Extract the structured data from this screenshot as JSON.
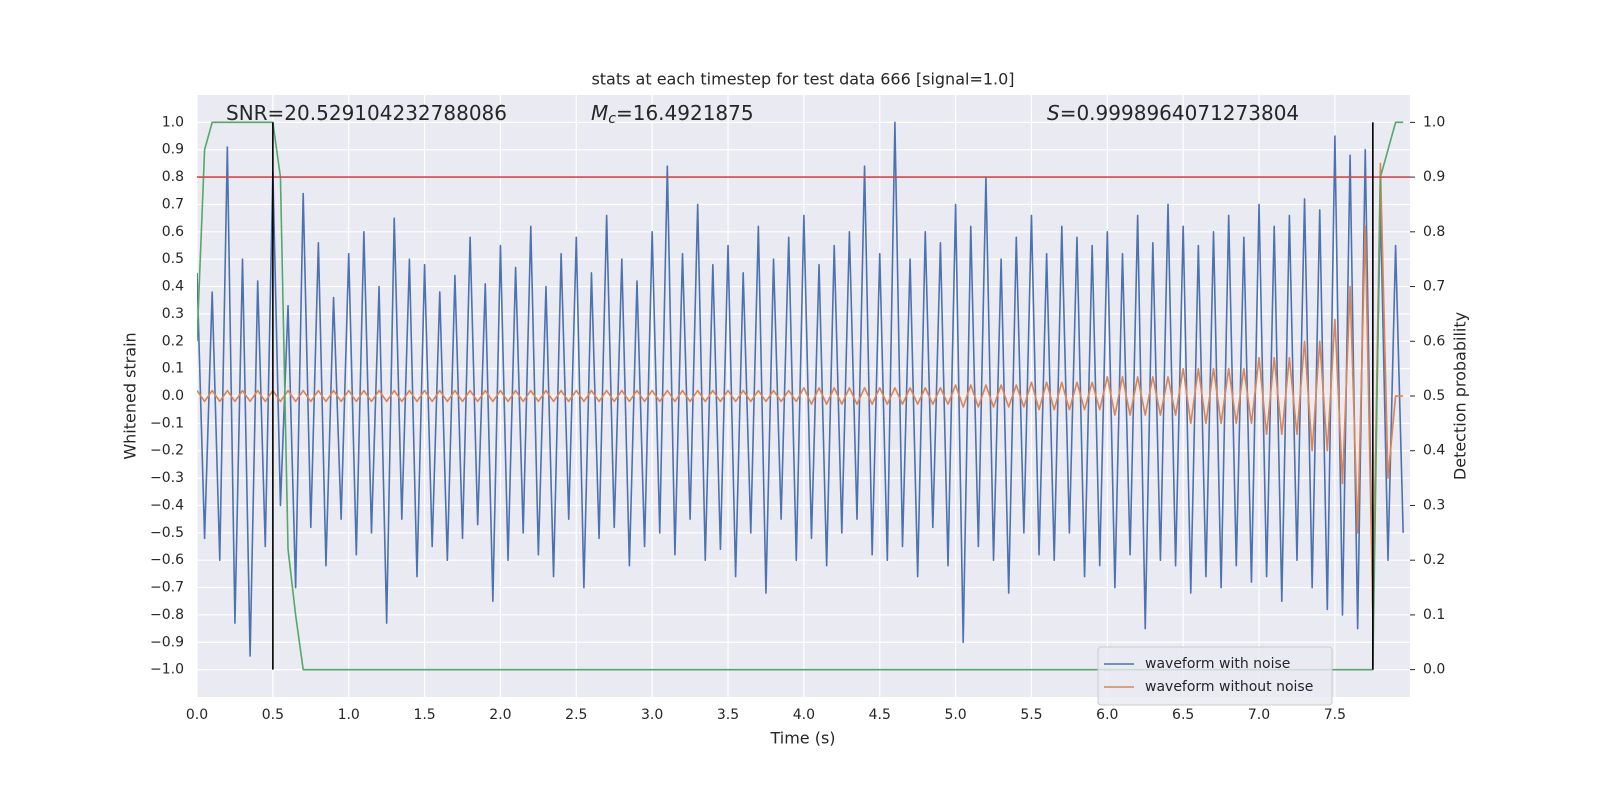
{
  "chart_data": {
    "type": "line",
    "title": "stats at each timestep for test data 666 [signal=1.0]",
    "xlabel": "Time (s)",
    "ylabel": "Whitened strain",
    "y2label": "Detection probability",
    "annotations": [
      {
        "text": "SNR=20.529104232788086"
      },
      {
        "symbol": "M",
        "subscript": "c",
        "text": "=16.4921875"
      },
      {
        "symbol": "S",
        "text": "=0.9998964071273804"
      }
    ],
    "xlim": [
      0,
      7.995
    ],
    "ylim": [
      -1.1,
      1.1
    ],
    "y2lim": [
      -0.05,
      1.05
    ],
    "grid": true,
    "legend": "lower right",
    "xticks": [
      {
        "value": 0,
        "label": "0.0"
      },
      {
        "value": 0.5,
        "label": "0.5"
      },
      {
        "value": 1,
        "label": "1.0"
      },
      {
        "value": 1.5,
        "label": "1.5"
      },
      {
        "value": 2,
        "label": "2.0"
      },
      {
        "value": 2.5,
        "label": "2.5"
      },
      {
        "value": 3,
        "label": "3.0"
      },
      {
        "value": 3.5,
        "label": "3.5"
      },
      {
        "value": 4,
        "label": "4.0"
      },
      {
        "value": 4.5,
        "label": "4.5"
      },
      {
        "value": 5,
        "label": "5.0"
      },
      {
        "value": 5.5,
        "label": "5.5"
      },
      {
        "value": 6,
        "label": "6.0"
      },
      {
        "value": 6.5,
        "label": "6.5"
      },
      {
        "value": 7,
        "label": "7.0"
      },
      {
        "value": 7.5,
        "label": "7.5"
      }
    ],
    "yticks": [
      {
        "value": -1,
        "label": "−1.0"
      },
      {
        "value": -0.9,
        "label": "−0.9"
      },
      {
        "value": -0.8,
        "label": "−0.8"
      },
      {
        "value": -0.7,
        "label": "−0.7"
      },
      {
        "value": -0.6,
        "label": "−0.6"
      },
      {
        "value": -0.5,
        "label": "−0.5"
      },
      {
        "value": -0.4,
        "label": "−0.4"
      },
      {
        "value": -0.3,
        "label": "−0.3"
      },
      {
        "value": -0.2,
        "label": "−0.2"
      },
      {
        "value": -0.1,
        "label": "−0.1"
      },
      {
        "value": 0,
        "label": "0.0"
      },
      {
        "value": 0.1,
        "label": "0.1"
      },
      {
        "value": 0.2,
        "label": "0.2"
      },
      {
        "value": 0.3,
        "label": "0.3"
      },
      {
        "value": 0.4,
        "label": "0.4"
      },
      {
        "value": 0.5,
        "label": "0.5"
      },
      {
        "value": 0.6,
        "label": "0.6"
      },
      {
        "value": 0.7,
        "label": "0.7"
      },
      {
        "value": 0.8,
        "label": "0.8"
      },
      {
        "value": 0.9,
        "label": "0.9"
      },
      {
        "value": 1,
        "label": "1.0"
      }
    ],
    "y2ticks": [
      {
        "value": 0,
        "label": "0.0"
      },
      {
        "value": 0.1,
        "label": "0.1"
      },
      {
        "value": 0.2,
        "label": "0.2"
      },
      {
        "value": 0.3,
        "label": "0.3"
      },
      {
        "value": 0.4,
        "label": "0.4"
      },
      {
        "value": 0.5,
        "label": "0.5"
      },
      {
        "value": 0.6,
        "label": "0.6"
      },
      {
        "value": 0.7,
        "label": "0.7"
      },
      {
        "value": 0.8,
        "label": "0.8"
      },
      {
        "value": 0.9,
        "label": "0.9"
      },
      {
        "value": 1,
        "label": "1.0"
      }
    ],
    "x": [
      0,
      0.05,
      0.1,
      0.15,
      0.2,
      0.25,
      0.3,
      0.35,
      0.4,
      0.45,
      0.5,
      0.55,
      0.6,
      0.65,
      0.7,
      0.75,
      0.8,
      0.85,
      0.9,
      0.95,
      1,
      1.05,
      1.1,
      1.15,
      1.2,
      1.25,
      1.3,
      1.35,
      1.4,
      1.45,
      1.5,
      1.55,
      1.6,
      1.65,
      1.7,
      1.75,
      1.8,
      1.85,
      1.9,
      1.95,
      2,
      2.05,
      2.1,
      2.15,
      2.2,
      2.25,
      2.3,
      2.35,
      2.4,
      2.45,
      2.5,
      2.55,
      2.6,
      2.65,
      2.7,
      2.75,
      2.8,
      2.85,
      2.9,
      2.95,
      3,
      3.05,
      3.1,
      3.15,
      3.2,
      3.25,
      3.3,
      3.35,
      3.4,
      3.45,
      3.5,
      3.55,
      3.6,
      3.65,
      3.7,
      3.75,
      3.8,
      3.85,
      3.9,
      3.95,
      4,
      4.05,
      4.1,
      4.15,
      4.2,
      4.25,
      4.3,
      4.35,
      4.4,
      4.45,
      4.5,
      4.55,
      4.6,
      4.65,
      4.7,
      4.75,
      4.8,
      4.85,
      4.9,
      4.95,
      5,
      5.05,
      5.1,
      5.15,
      5.2,
      5.25,
      5.3,
      5.35,
      5.4,
      5.45,
      5.5,
      5.55,
      5.6,
      5.65,
      5.7,
      5.75,
      5.8,
      5.85,
      5.9,
      5.95,
      6,
      6.05,
      6.1,
      6.15,
      6.2,
      6.25,
      6.3,
      6.35,
      6.4,
      6.45,
      6.5,
      6.55,
      6.6,
      6.65,
      6.7,
      6.75,
      6.8,
      6.85,
      6.9,
      6.95,
      7,
      7.05,
      7.1,
      7.15,
      7.2,
      7.25,
      7.3,
      7.35,
      7.4,
      7.45,
      7.5,
      7.55,
      7.6,
      7.65,
      7.7,
      7.75,
      7.8,
      7.85,
      7.9,
      7.95
    ],
    "series": [
      {
        "name": "waveform with noise",
        "color": "#4c72b0",
        "values": [
          0.45,
          -0.52,
          0.38,
          -0.6,
          0.91,
          -0.83,
          0.5,
          -0.95,
          0.42,
          -0.55,
          0.82,
          -0.4,
          0.33,
          -0.7,
          0.74,
          -0.48,
          0.56,
          -0.62,
          0.36,
          -0.45,
          0.52,
          -0.58,
          0.6,
          -0.5,
          0.4,
          -0.83,
          0.65,
          -0.45,
          0.5,
          -0.66,
          0.48,
          -0.55,
          0.38,
          -0.6,
          0.44,
          -0.52,
          0.58,
          -0.47,
          0.41,
          -0.75,
          0.55,
          -0.6,
          0.47,
          -0.5,
          0.62,
          -0.58,
          0.4,
          -0.66,
          0.52,
          -0.45,
          0.58,
          -0.7,
          0.45,
          -0.52,
          0.66,
          -0.48,
          0.5,
          -0.62,
          0.42,
          -0.55,
          0.6,
          -0.5,
          0.84,
          -0.58,
          0.52,
          -0.45,
          0.7,
          -0.6,
          0.48,
          -0.56,
          0.55,
          -0.66,
          0.45,
          -0.5,
          0.62,
          -0.72,
          0.5,
          -0.45,
          0.58,
          -0.6,
          0.66,
          -0.52,
          0.48,
          -0.62,
          0.55,
          -0.5,
          0.6,
          -0.45,
          0.84,
          -0.58,
          0.52,
          -0.6,
          1.0,
          -0.55,
          0.5,
          -0.66,
          0.6,
          -0.48,
          0.56,
          -0.62,
          0.7,
          -0.9,
          0.62,
          -0.55,
          0.8,
          -0.6,
          0.5,
          -0.72,
          0.58,
          -0.5,
          0.66,
          -0.58,
          0.52,
          -0.6,
          0.62,
          -0.5,
          0.58,
          -0.66,
          0.55,
          -0.62,
          0.6,
          -0.7,
          0.52,
          -0.58,
          0.66,
          -0.85,
          0.56,
          -0.6,
          0.7,
          -0.62,
          0.62,
          -0.72,
          0.55,
          -0.66,
          0.6,
          -0.7,
          0.66,
          -0.62,
          0.58,
          -0.68,
          0.7,
          -0.66,
          0.62,
          -0.75,
          0.66,
          -0.6,
          0.72,
          -0.7,
          0.68,
          -0.78,
          0.95,
          -0.8,
          0.88,
          -0.85,
          0.9,
          -0.78,
          0.7,
          -0.6,
          0.55,
          -0.5
        ]
      },
      {
        "name": "waveform without noise",
        "color": "#dd8452",
        "values": [
          0.02,
          -0.02,
          0.02,
          -0.02,
          0.02,
          -0.02,
          0.02,
          -0.02,
          0.02,
          -0.02,
          0.02,
          -0.02,
          0.02,
          -0.02,
          0.02,
          -0.02,
          0.02,
          -0.02,
          0.02,
          -0.02,
          0.02,
          -0.02,
          0.02,
          -0.02,
          0.02,
          -0.02,
          0.02,
          -0.02,
          0.02,
          -0.02,
          0.02,
          -0.02,
          0.02,
          -0.02,
          0.02,
          -0.02,
          0.02,
          -0.02,
          0.02,
          -0.02,
          0.02,
          -0.02,
          0.02,
          -0.02,
          0.02,
          -0.02,
          0.02,
          -0.02,
          0.02,
          -0.02,
          0.02,
          -0.02,
          0.02,
          -0.02,
          0.02,
          -0.02,
          0.02,
          -0.02,
          0.02,
          -0.02,
          0.02,
          -0.02,
          0.02,
          -0.02,
          0.02,
          -0.02,
          0.02,
          -0.02,
          0.02,
          -0.02,
          0.02,
          -0.02,
          0.02,
          -0.02,
          0.02,
          -0.02,
          0.02,
          -0.02,
          0.02,
          -0.02,
          0.03,
          -0.03,
          0.03,
          -0.03,
          0.03,
          -0.03,
          0.03,
          -0.03,
          0.03,
          -0.03,
          0.03,
          -0.03,
          0.03,
          -0.03,
          0.03,
          -0.03,
          0.03,
          -0.03,
          0.03,
          -0.03,
          0.04,
          -0.04,
          0.04,
          -0.04,
          0.04,
          -0.04,
          0.04,
          -0.04,
          0.04,
          -0.04,
          0.05,
          -0.05,
          0.05,
          -0.05,
          0.05,
          -0.05,
          0.05,
          -0.05,
          0.05,
          -0.05,
          0.07,
          -0.07,
          0.07,
          -0.07,
          0.07,
          -0.07,
          0.07,
          -0.07,
          0.07,
          -0.07,
          0.1,
          -0.1,
          0.1,
          -0.1,
          0.1,
          -0.1,
          0.1,
          -0.1,
          0.1,
          -0.1,
          0.14,
          -0.14,
          0.14,
          -0.14,
          0.14,
          -0.14,
          0.2,
          -0.2,
          0.2,
          -0.2,
          0.28,
          -0.32,
          0.4,
          -0.5,
          0.62,
          -0.8,
          0.85,
          -0.3,
          0.0,
          0.0
        ]
      },
      {
        "color": "#55a868",
        "axis": "y2",
        "x": [
          0,
          0.05,
          0.1,
          0.15,
          0.5,
          0.55,
          0.6,
          0.65,
          0.7,
          0.75,
          7.75,
          7.8,
          7.85,
          7.9,
          7.95
        ],
        "values": [
          0.6,
          0.95,
          1.0,
          1.0,
          1.0,
          0.9,
          0.22,
          0.1,
          0.0,
          0.0,
          0.0,
          0.9,
          0.95,
          1.0,
          1.0
        ]
      }
    ],
    "hlines": [
      {
        "axis": "y2",
        "value": 0.9,
        "color": "#c44e52"
      }
    ],
    "vlines": [
      {
        "value": 0.5,
        "ymin": -1,
        "ymax": 1,
        "color": "#000000"
      },
      {
        "value": 7.75,
        "ymin": -1,
        "ymax": 1,
        "color": "#000000"
      }
    ]
  }
}
